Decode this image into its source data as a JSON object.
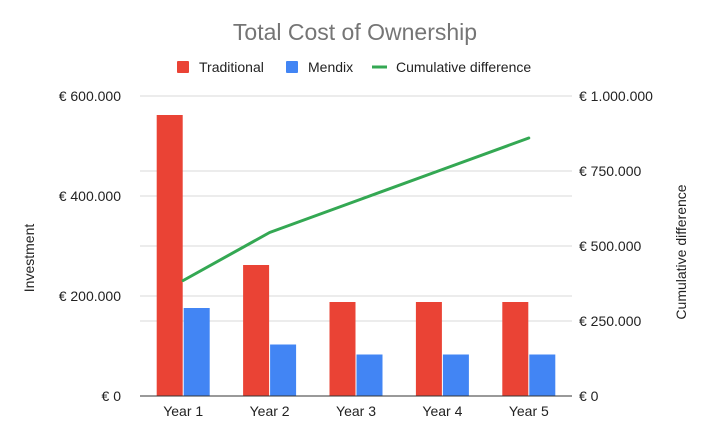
{
  "chart_data": {
    "type": "bar",
    "title": "Total Cost of Ownership",
    "categories": [
      "Year 1",
      "Year 2",
      "Year 3",
      "Year 4",
      "Year 5"
    ],
    "series": [
      {
        "name": "Traditional",
        "type": "bar",
        "axis": "left",
        "color": "#EA4335",
        "values": [
          562000,
          262000,
          188000,
          188000,
          188000
        ]
      },
      {
        "name": "Mendix",
        "type": "bar",
        "axis": "left",
        "color": "#4285F4",
        "values": [
          176000,
          103000,
          83000,
          83000,
          83000
        ]
      },
      {
        "name": "Cumulative difference",
        "type": "line",
        "axis": "right",
        "color": "#34A853",
        "values": [
          385000,
          545000,
          650000,
          755000,
          860000
        ]
      }
    ],
    "y_left": {
      "label": "Investment",
      "range": [
        0,
        600000
      ],
      "ticks": [
        0,
        200000,
        400000,
        600000
      ],
      "tick_labels": [
        "€ 0",
        "€ 200.000",
        "€ 400.000",
        "€ 600.000"
      ]
    },
    "y_right": {
      "label": "Cumulative difference",
      "range": [
        0,
        1000000
      ],
      "ticks": [
        0,
        250000,
        500000,
        750000,
        1000000
      ],
      "tick_labels": [
        "€ 0",
        "€ 250.000",
        "€ 500.000",
        "€ 750.000",
        "€ 1.000.000"
      ]
    },
    "grid": true,
    "legend_position": "top"
  }
}
